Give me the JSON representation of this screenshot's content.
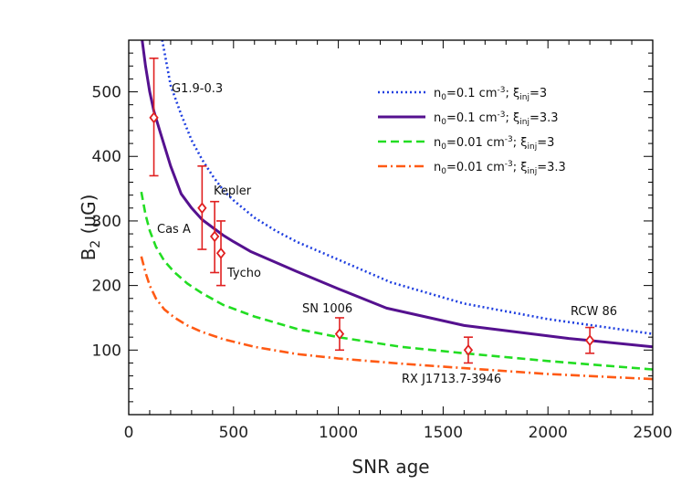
{
  "chart_data": {
    "type": "line",
    "title": "",
    "xlabel": "SNR age",
    "ylabel_main": "B",
    "ylabel_sub": "2",
    "ylabel_unit": " (μG)",
    "xlim": [
      0,
      2500
    ],
    "ylim": [
      0,
      580
    ],
    "xticks": [
      0,
      500,
      1000,
      1500,
      2000,
      2500
    ],
    "yticks": [
      100,
      200,
      300,
      400,
      500
    ],
    "grid": false,
    "legend_position": "top-right",
    "series": [
      {
        "legend_parts": [
          "n",
          "0",
          "=0.1 cm",
          "-3",
          "; ξ",
          "inj",
          "=3"
        ],
        "color": "#1f3fe0",
        "style": "dotted",
        "x": [
          120,
          160,
          200,
          250,
          300,
          350,
          400,
          450,
          500,
          600,
          700,
          800,
          1000,
          1250,
          1600,
          2000,
          2500
        ],
        "y": [
          700,
          580,
          510,
          465,
          425,
          395,
          370,
          348,
          332,
          305,
          285,
          268,
          240,
          205,
          172,
          148,
          125
        ]
      },
      {
        "legend_parts": [
          "n",
          "0",
          "=0.1 cm",
          "-3",
          "; ξ",
          "inj",
          "=3.3"
        ],
        "color": "#55118f",
        "style": "solid",
        "x": [
          60,
          80,
          100,
          120,
          150,
          200,
          250,
          300,
          350,
          400,
          450,
          500,
          580,
          800,
          1000,
          1230,
          1600,
          2100,
          2500
        ],
        "y": [
          590,
          540,
          500,
          470,
          438,
          385,
          342,
          320,
          302,
          290,
          278,
          268,
          253,
          222,
          195,
          165,
          138,
          118,
          105
        ]
      },
      {
        "legend_parts": [
          "n",
          "0",
          "=0.01 cm",
          "-3",
          "; ξ",
          "inj",
          "=3"
        ],
        "color": "#22dd22",
        "style": "dashed",
        "x": [
          60,
          80,
          100,
          130,
          170,
          220,
          280,
          350,
          450,
          600,
          800,
          1000,
          1300,
          1600,
          2000,
          2500
        ],
        "y": [
          345,
          310,
          285,
          260,
          238,
          220,
          203,
          188,
          170,
          152,
          133,
          120,
          105,
          95,
          83,
          70
        ]
      },
      {
        "legend_parts": [
          "n",
          "0",
          "=0.01 cm",
          "-3",
          "; ξ",
          "inj",
          "=3.3"
        ],
        "color": "#ff5a14",
        "style": "dashdot",
        "x": [
          60,
          80,
          100,
          130,
          170,
          220,
          280,
          350,
          450,
          600,
          800,
          1000,
          1300,
          1600,
          2000,
          2500
        ],
        "y": [
          245,
          220,
          200,
          180,
          163,
          150,
          138,
          128,
          117,
          105,
          94,
          87,
          79,
          72,
          63,
          55
        ]
      }
    ],
    "observations": {
      "color": "#e02020",
      "points": [
        {
          "name": "G1.9-0.3",
          "x": 120,
          "y": 460,
          "lo": 370,
          "hi": 552
        },
        {
          "name": "Kepler",
          "x": 350,
          "y": 320,
          "lo": 256,
          "hi": 385
        },
        {
          "name": "Cas A",
          "x": 410,
          "y": 276,
          "lo": 220,
          "hi": 330
        },
        {
          "name": "Tycho",
          "x": 440,
          "y": 250,
          "lo": 200,
          "hi": 300
        },
        {
          "name": "SN 1006",
          "x": 1006,
          "y": 125,
          "lo": 100,
          "hi": 150
        },
        {
          "name": "RX J1713.7-3946",
          "x": 1620,
          "y": 100,
          "lo": 80,
          "hi": 120
        },
        {
          "name": "RCW 86",
          "x": 2200,
          "y": 115,
          "lo": 95,
          "hi": 135
        }
      ]
    }
  }
}
